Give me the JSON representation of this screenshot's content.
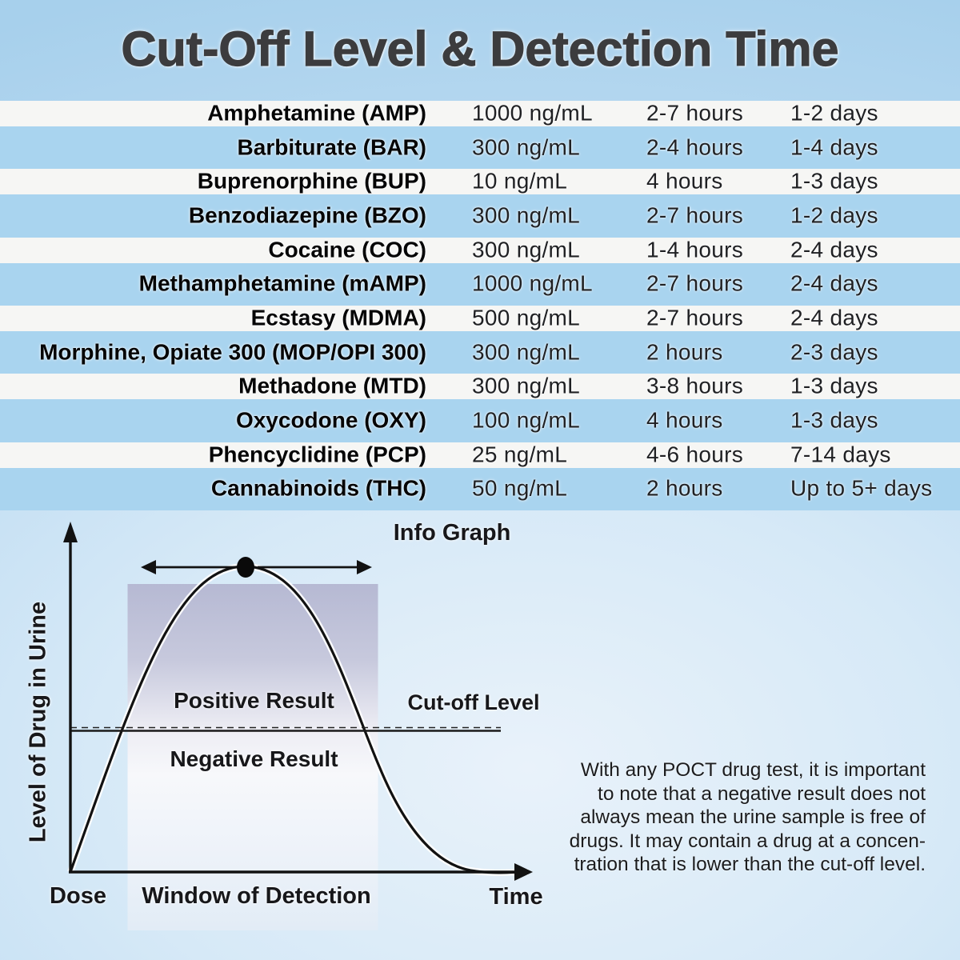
{
  "title": "Cut-Off Level & Detection Time",
  "table": {
    "rows": [
      {
        "drug": "Amphetamine (AMP)",
        "cutoff": "1000 ng/mL",
        "hours": "2-7 hours",
        "days": "1-2 days"
      },
      {
        "drug": "Barbiturate (BAR)",
        "cutoff": "300 ng/mL",
        "hours": "2-4 hours",
        "days": "1-4 days"
      },
      {
        "drug": "Buprenorphine (BUP)",
        "cutoff": "10 ng/mL",
        "hours": "4 hours",
        "days": "1-3 days"
      },
      {
        "drug": "Benzodiazepine (BZO)",
        "cutoff": "300 ng/mL",
        "hours": "2-7 hours",
        "days": "1-2 days"
      },
      {
        "drug": "Cocaine (COC)",
        "cutoff": "300 ng/mL",
        "hours": "1-4 hours",
        "days": "2-4 days"
      },
      {
        "drug": "Methamphetamine (mAMP)",
        "cutoff": "1000 ng/mL",
        "hours": "2-7 hours",
        "days": "2-4 days"
      },
      {
        "drug": "Ecstasy (MDMA)",
        "cutoff": "500 ng/mL",
        "hours": "2-7 hours",
        "days": "2-4 days"
      },
      {
        "drug": "Morphine, Opiate 300 (MOP/OPI 300)",
        "cutoff": "300 ng/mL",
        "hours": "2 hours",
        "days": "2-3 days"
      },
      {
        "drug": "Methadone (MTD)",
        "cutoff": "300 ng/mL",
        "hours": "3-8 hours",
        "days": "1-3 days"
      },
      {
        "drug": "Oxycodone (OXY)",
        "cutoff": "100 ng/mL",
        "hours": "4 hours",
        "days": "1-3 days"
      },
      {
        "drug": "Phencyclidine (PCP)",
        "cutoff": "25 ng/mL",
        "hours": "4-6 hours",
        "days": "7-14 days"
      },
      {
        "drug": "Cannabinoids (THC)",
        "cutoff": "50 ng/mL",
        "hours": "2 hours",
        "days": "Up to 5+ days"
      }
    ]
  },
  "graph": {
    "title": "Info Graph",
    "y_axis_label": "Level of Drug in Urine",
    "x_origin_label": "Dose",
    "x_end_label": "Time",
    "window_label": "Window of Detection",
    "positive_label": "Positive Result",
    "negative_label": "Negative Result",
    "cutoff_label": "Cut-off Level"
  },
  "note": "With any POCT drug test, it is important\nto note that a negative result does not\nalways mean the urine sample is free of\ndrugs. It may contain a drug at a concen-\ntration that is lower than the cut-off level.",
  "chart_data": {
    "type": "line",
    "title": "Info Graph",
    "ylabel": "Level of Drug in Urine",
    "x_tick_labels": [
      "Dose",
      "Time"
    ],
    "annotations": [
      "Positive Result",
      "Negative Result",
      "Cut-off Level",
      "Window of Detection"
    ],
    "curve_points_normalized": [
      [
        0,
        0
      ],
      [
        0.13,
        0.46
      ],
      [
        0.25,
        0.84
      ],
      [
        0.38,
        1.0
      ],
      [
        0.52,
        0.84
      ],
      [
        0.67,
        0.46
      ],
      [
        0.78,
        0.15
      ],
      [
        0.9,
        0.02
      ],
      [
        1,
        0
      ]
    ],
    "cutoff_level_normalized": 0.46,
    "window_of_detection_x_normalized": [
      0.13,
      0.67
    ],
    "grid": false,
    "legend": false
  },
  "colors": {
    "background_blue": "#a7d0ec",
    "background_light": "#e9f2fa",
    "row_white": "#f6f6f4",
    "row_blue": "#a9d4ef",
    "window_shade_top": "#b6b9d3",
    "title_text": "#3c3c3e",
    "body_text": "#1f2023",
    "line_black": "#121212"
  }
}
